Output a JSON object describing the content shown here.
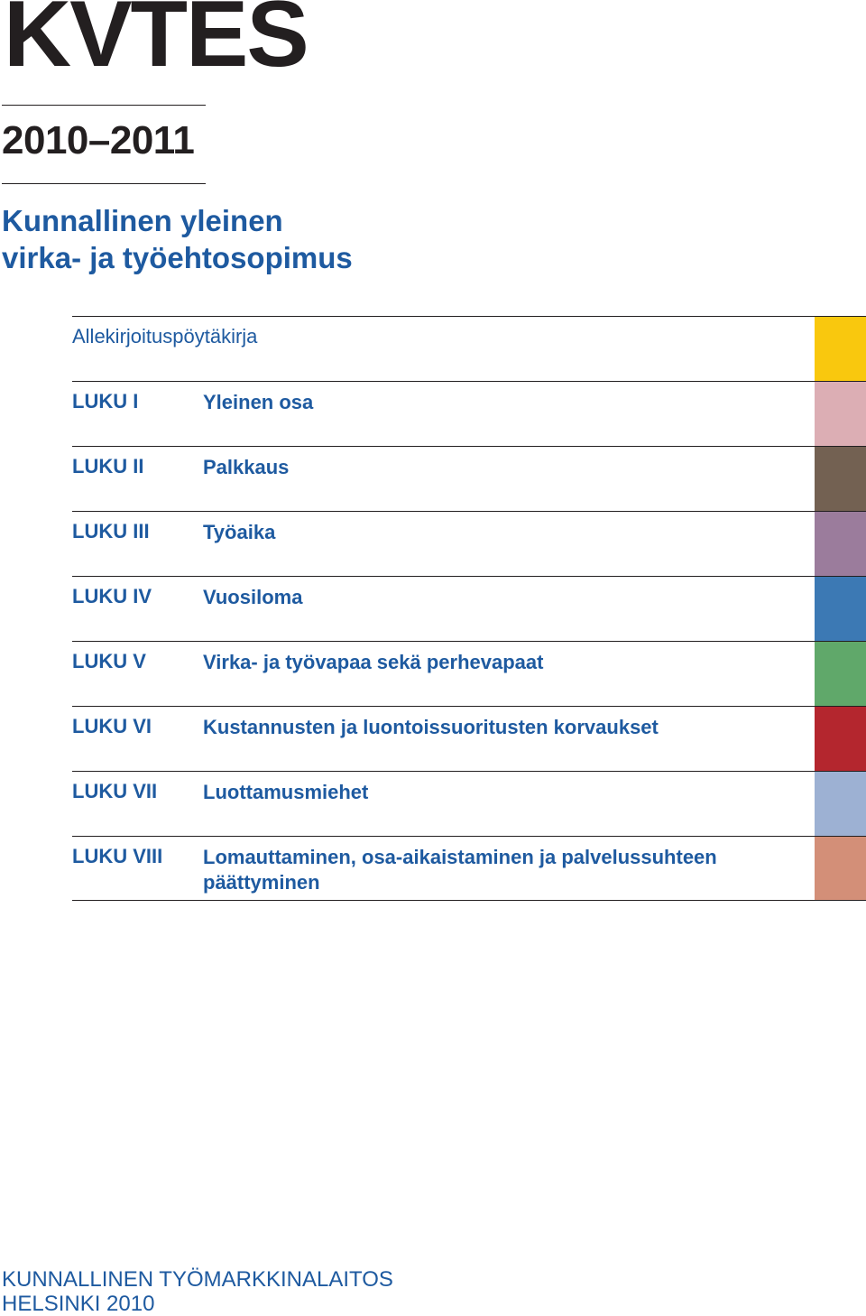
{
  "title": "KVTES",
  "years": "2010–2011",
  "subtitle": {
    "line1": "Kunnallinen yleinen",
    "line2": "virka- ja työehtosopimus"
  },
  "toc": [
    {
      "num": "",
      "label": "Allekirjoituspöytäkirja",
      "color": "#f9c80e"
    },
    {
      "num": "LUKU I",
      "label": "Yleinen osa",
      "color": "#dcaeb4"
    },
    {
      "num": "LUKU II",
      "label": "Palkkaus",
      "color": "#736152"
    },
    {
      "num": "LUKU III",
      "label": "Työaika",
      "color": "#9b7c9c"
    },
    {
      "num": "LUKU IV",
      "label": "Vuosiloma",
      "color": "#3c79b4"
    },
    {
      "num": "LUKU V",
      "label": "Virka- ja työvapaa sekä perhevapaat",
      "color": "#60a86a"
    },
    {
      "num": "LUKU VI",
      "label": "Kustannusten ja luontoissuoritusten korvaukset",
      "color": "#b4262e"
    },
    {
      "num": "LUKU VII",
      "label": "Luottamusmiehet",
      "color": "#9db1d3"
    },
    {
      "num": "LUKU VIII",
      "label": "Lomauttaminen, osa-aikaistaminen ja palvelussuhteen päättyminen",
      "color": "#d38f78"
    }
  ],
  "footer": {
    "line1": "KUNNALLINEN TYÖMARKKINALAITOS",
    "line2": "HELSINKI 2010"
  }
}
